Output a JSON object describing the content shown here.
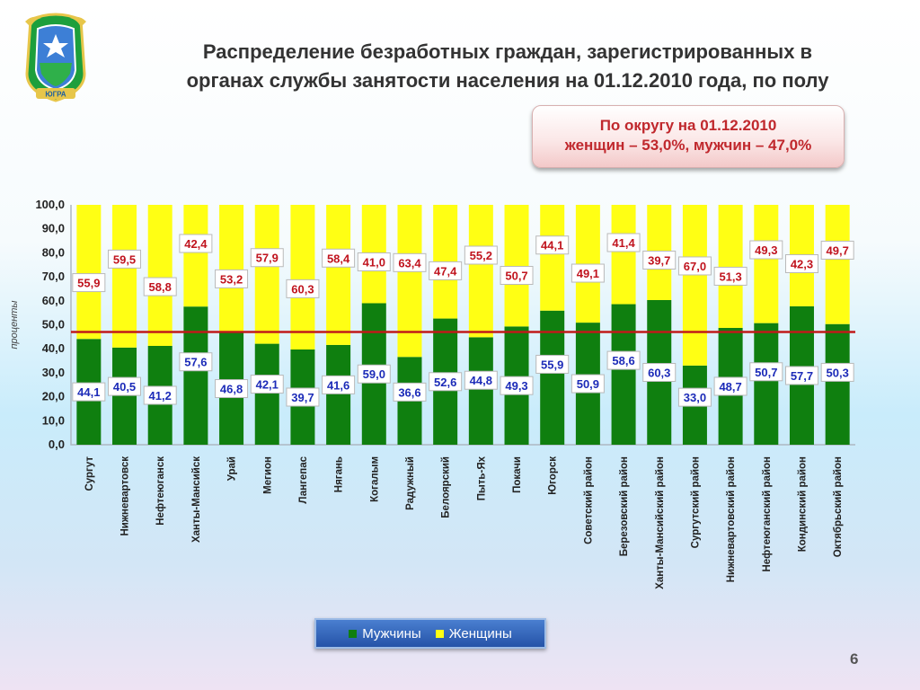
{
  "slide": {
    "title_line1": "Распределение безработных граждан, зарегистрированных в",
    "title_line2": "органах службы занятости населения на 01.12.2010 года, по полу",
    "callout_line1": "По округу на 01.12.2010",
    "callout_line2": "женщин – 53,0%, мужчин – 47,0%",
    "page_number": "6",
    "emblem_text": "ЮГРА"
  },
  "legend": {
    "men_label": "Мужчины",
    "women_label": "Женщины",
    "placement": "bottom"
  },
  "chart_data": {
    "type": "bar",
    "stacked": true,
    "ylabel": "проценты",
    "ylim": [
      0,
      100
    ],
    "yticks": [
      "0,0",
      "10,0",
      "20,0",
      "30,0",
      "40,0",
      "50,0",
      "60,0",
      "70,0",
      "80,0",
      "90,0",
      "100,0"
    ],
    "grid": false,
    "reference_line": 47.0,
    "categories": [
      "Сургут",
      "Нижневартовск",
      "Нефтеюганск",
      "Ханты-Мансийск",
      "Урай",
      "Мегион",
      "Лангепас",
      "Нягань",
      "Когалым",
      "Радужный",
      "Белоярский",
      "Пыть-Ях",
      "Покачи",
      "Югорск",
      "Советский район",
      "Березовский район",
      "Ханты-Мансийский район",
      "Сургутский район",
      "Нижневартовский район",
      "Нефтеюганский район",
      "Кондинский район",
      "Октябрьский район"
    ],
    "series": [
      {
        "name": "Мужчины",
        "color": "#0f7f0f",
        "label_color": "#1c2bb8",
        "values": [
          44.1,
          40.5,
          41.2,
          57.6,
          46.8,
          42.1,
          39.7,
          41.6,
          59.0,
          36.6,
          52.6,
          44.8,
          49.3,
          55.9,
          50.9,
          58.6,
          60.3,
          33.0,
          48.7,
          50.7,
          57.7,
          50.3
        ],
        "labels": [
          "44,1",
          "40,5",
          "41,2",
          "57,6",
          "46,8",
          "42,1",
          "39,7",
          "41,6",
          "59,0",
          "36,6",
          "52,6",
          "44,8",
          "49,3",
          "55,9",
          "50,9",
          "58,6",
          "60,3",
          "33,0",
          "48,7",
          "50,7",
          "57,7",
          "50,3"
        ]
      },
      {
        "name": "Женщины",
        "color": "#ffff14",
        "label_color": "#c0141e",
        "values": [
          55.9,
          59.5,
          58.8,
          42.4,
          53.2,
          57.9,
          60.3,
          58.4,
          41.0,
          63.4,
          47.4,
          55.2,
          50.7,
          44.1,
          49.1,
          41.4,
          39.7,
          67.0,
          51.3,
          49.3,
          42.3,
          49.7
        ],
        "labels": [
          "55,9",
          "59,5",
          "58,8",
          "42,4",
          "53,2",
          "57,9",
          "60,3",
          "58,4",
          "41,0",
          "63,4",
          "47,4",
          "55,2",
          "50,7",
          "44,1",
          "49,1",
          "41,4",
          "39,7",
          "67,0",
          "51,3",
          "49,3",
          "42,3",
          "49,7"
        ]
      }
    ]
  }
}
